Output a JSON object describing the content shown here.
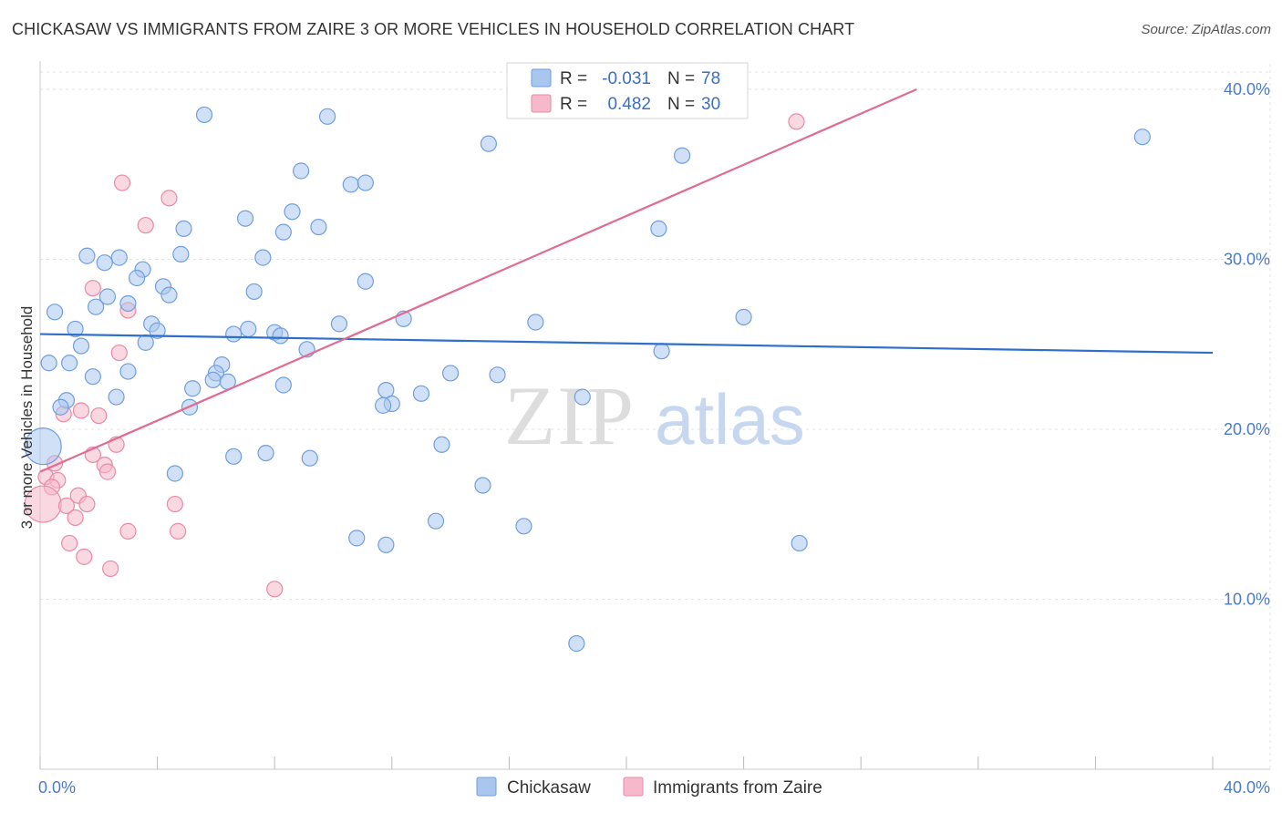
{
  "title": "CHICKASAW VS IMMIGRANTS FROM ZAIRE 3 OR MORE VEHICLES IN HOUSEHOLD CORRELATION CHART",
  "source": "Source: ZipAtlas.com",
  "watermark": {
    "zip": "ZIP",
    "atlas": "atlas"
  },
  "colors": {
    "blue_fill": "#a9c6ee",
    "blue_stroke": "#6f9fde",
    "blue_line": "#2f6fcc",
    "pink_fill": "#f6b8cb",
    "pink_stroke": "#e98aa7",
    "pink_line": "#e06c93",
    "tick": "#4a7cc9",
    "grid": "#e3e3e3"
  },
  "legend": {
    "rows": [
      {
        "r_label": "R =",
        "r_value": "-0.031",
        "n_label": "N =",
        "n_value": "78",
        "series": "blue"
      },
      {
        "r_label": "R =",
        "r_value": "0.482",
        "n_label": "N =",
        "n_value": "30",
        "series": "pink"
      }
    ]
  },
  "chart_data": {
    "type": "scatter",
    "title": "CHICKASAW VS IMMIGRANTS FROM ZAIRE 3 OR MORE VEHICLES IN HOUSEHOLD CORRELATION CHART",
    "xlabel": "",
    "ylabel": "3 or more Vehicles in Household",
    "xlim": [
      0,
      40
    ],
    "ylim": [
      0,
      41.5
    ],
    "x_tick_labels": [
      {
        "value": 0,
        "label": "0.0%"
      },
      {
        "value": 40,
        "label": "40.0%"
      }
    ],
    "y_tick_labels": [
      {
        "value": 10,
        "label": "10.0%"
      },
      {
        "value": 20,
        "label": "20.0%"
      },
      {
        "value": 30,
        "label": "30.0%"
      },
      {
        "value": 40,
        "label": "40.0%"
      }
    ],
    "grid": true,
    "series": [
      {
        "name": "Chickasaw",
        "color": "blue",
        "trend": {
          "x": [
            0,
            40
          ],
          "y": [
            25.6,
            24.5
          ]
        },
        "points": [
          {
            "x": 5.6,
            "y": 38.5
          },
          {
            "x": 9.8,
            "y": 38.4
          },
          {
            "x": 15.3,
            "y": 36.8
          },
          {
            "x": 37.6,
            "y": 37.2
          },
          {
            "x": 21.9,
            "y": 36.1
          },
          {
            "x": 8.9,
            "y": 35.2
          },
          {
            "x": 10.6,
            "y": 34.4
          },
          {
            "x": 11.1,
            "y": 34.5
          },
          {
            "x": 8.6,
            "y": 32.8
          },
          {
            "x": 7.0,
            "y": 32.4
          },
          {
            "x": 9.5,
            "y": 31.9
          },
          {
            "x": 4.9,
            "y": 31.8
          },
          {
            "x": 8.3,
            "y": 31.6
          },
          {
            "x": 21.1,
            "y": 31.8
          },
          {
            "x": 4.8,
            "y": 30.3
          },
          {
            "x": 1.6,
            "y": 30.2
          },
          {
            "x": 2.7,
            "y": 30.1
          },
          {
            "x": 2.2,
            "y": 29.8
          },
          {
            "x": 7.6,
            "y": 30.1
          },
          {
            "x": 3.5,
            "y": 29.4
          },
          {
            "x": 3.3,
            "y": 28.9
          },
          {
            "x": 11.1,
            "y": 28.7
          },
          {
            "x": 4.2,
            "y": 28.4
          },
          {
            "x": 4.4,
            "y": 27.9
          },
          {
            "x": 2.3,
            "y": 27.8
          },
          {
            "x": 7.3,
            "y": 28.1
          },
          {
            "x": 3.0,
            "y": 27.4
          },
          {
            "x": 1.9,
            "y": 27.2
          },
          {
            "x": 0.5,
            "y": 26.9
          },
          {
            "x": 12.4,
            "y": 26.5
          },
          {
            "x": 16.9,
            "y": 26.3
          },
          {
            "x": 24.0,
            "y": 26.6
          },
          {
            "x": 10.2,
            "y": 26.2
          },
          {
            "x": 3.8,
            "y": 26.2
          },
          {
            "x": 1.2,
            "y": 25.9
          },
          {
            "x": 7.1,
            "y": 25.9
          },
          {
            "x": 6.6,
            "y": 25.6
          },
          {
            "x": 8.0,
            "y": 25.7
          },
          {
            "x": 8.2,
            "y": 25.5
          },
          {
            "x": 4.0,
            "y": 25.8
          },
          {
            "x": 3.6,
            "y": 25.1
          },
          {
            "x": 1.4,
            "y": 24.9
          },
          {
            "x": 9.1,
            "y": 24.7
          },
          {
            "x": 21.2,
            "y": 24.6
          },
          {
            "x": 0.3,
            "y": 23.9
          },
          {
            "x": 1.0,
            "y": 23.9
          },
          {
            "x": 6.2,
            "y": 23.8
          },
          {
            "x": 3.0,
            "y": 23.4
          },
          {
            "x": 6.0,
            "y": 23.3
          },
          {
            "x": 14.0,
            "y": 23.3
          },
          {
            "x": 15.6,
            "y": 23.2
          },
          {
            "x": 1.8,
            "y": 23.1
          },
          {
            "x": 5.9,
            "y": 22.9
          },
          {
            "x": 6.4,
            "y": 22.8
          },
          {
            "x": 8.3,
            "y": 22.6
          },
          {
            "x": 5.2,
            "y": 22.4
          },
          {
            "x": 11.8,
            "y": 22.3
          },
          {
            "x": 13.0,
            "y": 22.1
          },
          {
            "x": 18.5,
            "y": 21.9
          },
          {
            "x": 2.6,
            "y": 21.9
          },
          {
            "x": 0.9,
            "y": 21.7
          },
          {
            "x": 12.0,
            "y": 21.5
          },
          {
            "x": 11.7,
            "y": 21.4
          },
          {
            "x": 5.1,
            "y": 21.3
          },
          {
            "x": 0.7,
            "y": 21.3
          },
          {
            "x": 0.1,
            "y": 19.0
          },
          {
            "x": 13.7,
            "y": 19.1
          },
          {
            "x": 7.7,
            "y": 18.6
          },
          {
            "x": 6.6,
            "y": 18.4
          },
          {
            "x": 9.2,
            "y": 18.3
          },
          {
            "x": 4.6,
            "y": 17.4
          },
          {
            "x": 15.1,
            "y": 16.7
          },
          {
            "x": 13.5,
            "y": 14.6
          },
          {
            "x": 16.5,
            "y": 14.3
          },
          {
            "x": 10.8,
            "y": 13.6
          },
          {
            "x": 11.8,
            "y": 13.2
          },
          {
            "x": 25.9,
            "y": 13.3
          },
          {
            "x": 18.3,
            "y": 7.4
          }
        ]
      },
      {
        "name": "Immigrants from Zaire",
        "color": "pink",
        "trend": {
          "x": [
            0,
            29.9
          ],
          "y": [
            17.5,
            40.0
          ]
        },
        "points": [
          {
            "x": 25.8,
            "y": 38.1
          },
          {
            "x": 2.8,
            "y": 34.5
          },
          {
            "x": 4.4,
            "y": 33.6
          },
          {
            "x": 3.6,
            "y": 32.0
          },
          {
            "x": 1.8,
            "y": 28.3
          },
          {
            "x": 3.0,
            "y": 27.0
          },
          {
            "x": 2.7,
            "y": 24.5
          },
          {
            "x": 1.4,
            "y": 21.1
          },
          {
            "x": 2.0,
            "y": 20.8
          },
          {
            "x": 0.8,
            "y": 20.9
          },
          {
            "x": 2.6,
            "y": 19.1
          },
          {
            "x": 1.8,
            "y": 18.5
          },
          {
            "x": 0.5,
            "y": 18.0
          },
          {
            "x": 2.2,
            "y": 17.9
          },
          {
            "x": 2.3,
            "y": 17.5
          },
          {
            "x": 0.2,
            "y": 17.2
          },
          {
            "x": 0.6,
            "y": 17.0
          },
          {
            "x": 0.4,
            "y": 16.6
          },
          {
            "x": 1.3,
            "y": 16.1
          },
          {
            "x": 0.1,
            "y": 15.6
          },
          {
            "x": 0.9,
            "y": 15.5
          },
          {
            "x": 1.6,
            "y": 15.6
          },
          {
            "x": 4.6,
            "y": 15.6
          },
          {
            "x": 1.2,
            "y": 14.8
          },
          {
            "x": 3.0,
            "y": 14.0
          },
          {
            "x": 4.7,
            "y": 14.0
          },
          {
            "x": 1.0,
            "y": 13.3
          },
          {
            "x": 1.5,
            "y": 12.5
          },
          {
            "x": 2.4,
            "y": 11.8
          },
          {
            "x": 8.0,
            "y": 10.6
          }
        ]
      }
    ]
  },
  "bottom_legend": [
    {
      "label": "Chickasaw",
      "series": "blue"
    },
    {
      "label": "Immigrants from Zaire",
      "series": "pink"
    }
  ]
}
